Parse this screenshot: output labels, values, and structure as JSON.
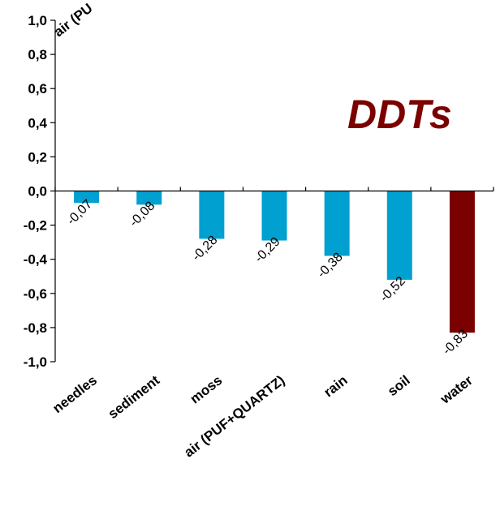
{
  "chart_data": {
    "type": "bar",
    "title": "DDTs",
    "categories": [
      "needles",
      "sediment",
      "moss",
      "air (PUF+QUARTZ)",
      "rain",
      "soil",
      "water"
    ],
    "values": [
      -0.07,
      -0.08,
      -0.28,
      -0.29,
      -0.38,
      -0.52,
      -0.83
    ],
    "value_labels": [
      "-0,07",
      "-0,08",
      "-0,28",
      "-0,29",
      "-0,38",
      "-0,52",
      "-0,83"
    ],
    "y_ticks": [
      "1,0",
      "0,8",
      "0,6",
      "0,4",
      "0,2",
      "0,0",
      "-0,2",
      "-0,4",
      "-0,6",
      "-0,8",
      "-1,0"
    ],
    "ylim": [
      -1.0,
      1.0
    ],
    "clipped_top_label": "air (PU",
    "grid": false,
    "colors": {
      "bar": "#00a0d0",
      "highlight_bar": "#7b0000",
      "title": "#7b0000",
      "axis": "#000000"
    },
    "highlight_index": 6
  }
}
